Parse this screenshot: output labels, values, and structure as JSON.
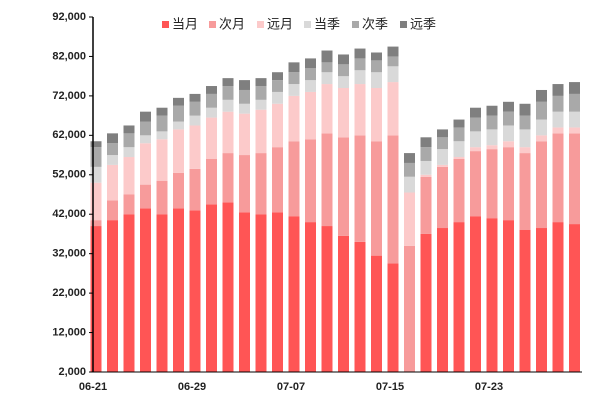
{
  "chart_data": {
    "type": "stacked_bar",
    "categories": [
      "06-21",
      null,
      null,
      null,
      null,
      null,
      "06-29",
      null,
      null,
      null,
      null,
      null,
      "07-07",
      null,
      null,
      null,
      null,
      null,
      "07-15",
      null,
      null,
      null,
      null,
      null,
      "07-23",
      null,
      null,
      null,
      null,
      null
    ],
    "series": [
      {
        "name": "当月",
        "color": "#ff5555",
        "values": [
          39000,
          40500,
          42000,
          43500,
          42000,
          43500,
          43000,
          44500,
          45000,
          42500,
          42000,
          42500,
          41500,
          40000,
          39000,
          36500,
          35000,
          31500,
          29500,
          0,
          37000,
          38500,
          40000,
          41500,
          41000,
          40500,
          38000,
          38500,
          40000,
          39500
        ]
      },
      {
        "name": "次月",
        "color": "#f79b9b",
        "values": [
          1500,
          5000,
          5000,
          6000,
          8500,
          9000,
          10500,
          11500,
          12500,
          14500,
          15500,
          16500,
          19000,
          21000,
          23500,
          25000,
          27000,
          29000,
          32500,
          34000,
          14500,
          15500,
          16000,
          16500,
          17500,
          18500,
          19500,
          22000,
          22500,
          23000
        ]
      },
      {
        "name": "远月",
        "color": "#fccaca",
        "values": [
          9500,
          9000,
          9500,
          10500,
          10500,
          11000,
          11000,
          10500,
          10500,
          10500,
          11000,
          11000,
          11500,
          12000,
          12500,
          12500,
          13000,
          13500,
          13500,
          13500,
          500,
          500,
          500,
          1000,
          1000,
          1500,
          1500,
          1500,
          1500,
          1500
        ]
      },
      {
        "name": "当季",
        "color": "#d9d9d9",
        "values": [
          4000,
          2500,
          2500,
          2000,
          2000,
          2000,
          2500,
          2500,
          3000,
          2500,
          2500,
          3000,
          3000,
          3000,
          3000,
          3000,
          3500,
          4000,
          4000,
          4000,
          3500,
          4000,
          4000,
          4000,
          4000,
          4000,
          4500,
          4000,
          4000,
          4000
        ]
      },
      {
        "name": "次季",
        "color": "#a9a9a9",
        "values": [
          5000,
          3000,
          3500,
          3500,
          4000,
          4000,
          3500,
          3500,
          3500,
          3500,
          3500,
          3000,
          3000,
          3000,
          2500,
          3000,
          3000,
          3000,
          2500,
          3500,
          3500,
          3000,
          3500,
          3500,
          3500,
          3500,
          3500,
          4500,
          4000,
          4500
        ]
      },
      {
        "name": "远季",
        "color": "#7f7f7f",
        "values": [
          1500,
          2500,
          2000,
          2500,
          2000,
          2000,
          2000,
          2000,
          2000,
          2500,
          2000,
          2000,
          2500,
          2500,
          3000,
          2500,
          2500,
          2000,
          2500,
          2500,
          2500,
          2000,
          2000,
          2500,
          2500,
          2500,
          3000,
          3000,
          3000,
          3000
        ]
      }
    ],
    "ylim": [
      2000,
      92000
    ],
    "yticks": [
      {
        "value": 2000,
        "label": "2,000"
      },
      {
        "value": 12000,
        "label": "12,000"
      },
      {
        "value": 22000,
        "label": "22,000"
      },
      {
        "value": 32000,
        "label": "32,000"
      },
      {
        "value": 42000,
        "label": "42,000"
      },
      {
        "value": 52000,
        "label": "52,000"
      },
      {
        "value": 62000,
        "label": "62,000"
      },
      {
        "value": 72000,
        "label": "72,000"
      },
      {
        "value": 82000,
        "label": "82,000"
      },
      {
        "value": 92000,
        "label": "92,000"
      }
    ],
    "grid": false,
    "legend": "top"
  }
}
